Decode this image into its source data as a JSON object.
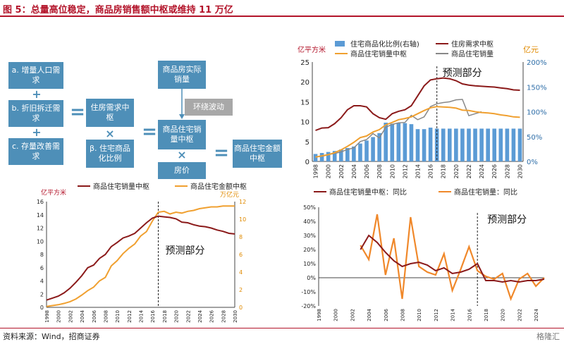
{
  "title": "图 5：总量高位稳定，商品房销售额中枢或维持 11 万亿",
  "source": "资料来源：Wind，招商证券",
  "watermark": "格隆汇",
  "diagram": {
    "b1": "a. 增量人口需求",
    "b2": "b. 折旧拆迁需求",
    "b3": "c. 存量改善需求",
    "b4": "住房需求中枢",
    "b5": "β. 住宅商品化比例",
    "b6": "商品房实际销量",
    "b7": "环绕波动",
    "b8": "商品住宅销量中枢",
    "b9": "房价",
    "b10": "商品住宅金额中枢",
    "plus": "+",
    "times": "×",
    "eq": "="
  },
  "chart_data": [
    {
      "type": "line",
      "panel": "bottom-left",
      "x": [
        1998,
        1999,
        2000,
        2001,
        2002,
        2003,
        2004,
        2005,
        2006,
        2007,
        2008,
        2009,
        2010,
        2011,
        2012,
        2013,
        2014,
        2015,
        2016,
        2017,
        2018,
        2019,
        2020,
        2021,
        2022,
        2023,
        2024,
        2025,
        2026,
        2027,
        2028,
        2029,
        2030
      ],
      "series": [
        {
          "name": "商品住宅销量中枢",
          "axis": "left",
          "color": "#8b1a1a",
          "values": [
            1.1,
            1.4,
            1.7,
            2.2,
            2.9,
            3.8,
            4.8,
            6.0,
            6.4,
            7.4,
            8.0,
            9.2,
            9.8,
            10.5,
            10.8,
            11.2,
            12.0,
            12.8,
            13.5,
            13.8,
            13.7,
            13.6,
            13.4,
            12.9,
            12.8,
            12.5,
            12.3,
            12.2,
            12.0,
            11.7,
            11.5,
            11.2,
            11.1
          ]
        },
        {
          "name": "商品住宅金额中枢",
          "axis": "right",
          "color": "#f0a030",
          "values": [
            0.1,
            0.2,
            0.3,
            0.45,
            0.65,
            0.95,
            1.4,
            1.9,
            2.3,
            3.0,
            3.4,
            4.7,
            5.3,
            6.1,
            6.7,
            7.2,
            8.1,
            8.6,
            9.8,
            10.8,
            10.9,
            10.6,
            10.8,
            10.7,
            10.9,
            11.0,
            11.2,
            11.3,
            11.4,
            11.4,
            11.5,
            11.5,
            11.5
          ]
        }
      ],
      "y_left": {
        "label": "亿平方米",
        "ticks": [
          0,
          2,
          4,
          6,
          8,
          10,
          12,
          14,
          16
        ]
      },
      "y_right": {
        "label": "万亿元",
        "ticks": [
          0,
          2,
          4,
          6,
          8,
          10,
          12
        ]
      },
      "x_ticks": [
        1998,
        2000,
        2002,
        2004,
        2006,
        2008,
        2010,
        2012,
        2014,
        2016,
        2018,
        2020,
        2022,
        2024,
        2026,
        2028,
        2030
      ],
      "annotation": "预测部分",
      "forecast_start": 2017
    },
    {
      "type": "bar+line",
      "panel": "top-right",
      "x": [
        1998,
        1999,
        2000,
        2001,
        2002,
        2003,
        2004,
        2005,
        2006,
        2007,
        2008,
        2009,
        2010,
        2011,
        2012,
        2013,
        2014,
        2015,
        2016,
        2017,
        2018,
        2019,
        2020,
        2021,
        2022,
        2023,
        2024,
        2025,
        2026,
        2027,
        2028,
        2029,
        2030
      ],
      "bars": {
        "name": "住宅商品化比例(右轴)",
        "color": "#5b9bd5",
        "values": [
          0.15,
          0.17,
          0.19,
          0.21,
          0.24,
          0.27,
          0.3,
          0.36,
          0.42,
          0.49,
          0.57,
          0.78,
          0.76,
          0.77,
          0.77,
          0.75,
          0.65,
          0.65,
          0.68,
          0.66,
          0.66,
          0.66,
          0.66,
          0.66,
          0.66,
          0.66,
          0.66,
          0.66,
          0.66,
          0.66,
          0.66,
          0.66,
          0.66
        ]
      },
      "series": [
        {
          "name": "住房需求中枢",
          "axis": "left",
          "color": "#8b1a1a",
          "values": [
            7.8,
            8.4,
            8.5,
            9.5,
            11.0,
            13.0,
            14.0,
            14.0,
            13.7,
            12.0,
            11.0,
            10.6,
            12.0,
            12.6,
            13.0,
            14.0,
            16.5,
            19.0,
            20.5,
            20.8,
            21.0,
            20.8,
            20.3,
            19.5,
            19.2,
            19.0,
            18.9,
            18.8,
            18.7,
            18.5,
            18.3,
            18.0,
            17.9
          ]
        },
        {
          "name": "商品住宅销量中枢",
          "axis": "left",
          "color": "#f0a030",
          "values": [
            1.1,
            1.4,
            1.7,
            2.2,
            2.9,
            3.8,
            4.8,
            6.0,
            6.4,
            7.4,
            8.0,
            9.2,
            9.8,
            10.5,
            10.8,
            11.2,
            12.0,
            12.8,
            13.5,
            13.8,
            13.7,
            13.6,
            13.4,
            12.9,
            12.8,
            12.5,
            12.3,
            12.2,
            12.0,
            11.7,
            11.5,
            11.2,
            11.1
          ]
        },
        {
          "name": "商品住宅销量",
          "axis": "left",
          "color": "#888888",
          "values": [
            1.1,
            1.3,
            1.7,
            2.0,
            2.4,
            3.0,
            3.4,
            5.0,
            5.5,
            7.0,
            5.9,
            8.6,
            9.3,
            9.7,
            9.8,
            11.6,
            10.5,
            11.2,
            13.8,
            14.5,
            14.8,
            15.0,
            15.5,
            15.6,
            11.5,
            12.0,
            12.5,
            null,
            null,
            null,
            null,
            null,
            null
          ]
        }
      ],
      "y_left": {
        "label": "亿平方米",
        "ticks": [
          0,
          5,
          10,
          15,
          20,
          25
        ]
      },
      "y_right": {
        "label": "亿元",
        "ticks": [
          "0%",
          "50%",
          "100%",
          "150%",
          "200%"
        ]
      },
      "x_ticks": [
        1998,
        2000,
        2002,
        2004,
        2006,
        2008,
        2010,
        2012,
        2014,
        2016,
        2018,
        2020,
        2022,
        2024,
        2026,
        2028,
        2030
      ],
      "annotation": "预测部分",
      "forecast_start": 2017
    },
    {
      "type": "line",
      "panel": "bottom-right",
      "x": [
        2003,
        2004,
        2005,
        2006,
        2007,
        2008,
        2009,
        2010,
        2011,
        2012,
        2013,
        2014,
        2015,
        2016,
        2017,
        2018,
        2019,
        2020,
        2021,
        2022,
        2023,
        2024,
        2025
      ],
      "series": [
        {
          "name": "商品住宅销量中枢：同比",
          "color": "#8b1a1a",
          "values": [
            0.2,
            0.3,
            0.25,
            0.18,
            0.12,
            0.08,
            0.1,
            0.11,
            0.09,
            0.05,
            0.07,
            0.03,
            0.04,
            0.06,
            0.1,
            -0.02,
            -0.02,
            -0.03,
            -0.02,
            -0.03,
            -0.02,
            -0.02,
            -0.01
          ]
        },
        {
          "name": "商品住宅销量：同比",
          "color": "#f0882a",
          "values": [
            0.23,
            0.13,
            0.45,
            0.02,
            0.28,
            -0.15,
            0.43,
            0.08,
            0.04,
            0.02,
            0.17,
            -0.09,
            0.06,
            0.22,
            0.05,
            0.01,
            -0.01,
            0.03,
            -0.15,
            -0.01,
            0.03,
            -0.06,
            0.0
          ]
        }
      ],
      "y_left": {
        "ticks": [
          "-20%",
          "-10%",
          "0%",
          "10%",
          "20%",
          "30%",
          "40%",
          "50%"
        ]
      },
      "x_ticks": [
        1998,
        2000,
        2002,
        2004,
        2006,
        2008,
        2010,
        2012,
        2014,
        2016,
        2018,
        2020,
        2022,
        2024
      ],
      "annotation": "预测部分",
      "forecast_start": 2017
    }
  ]
}
